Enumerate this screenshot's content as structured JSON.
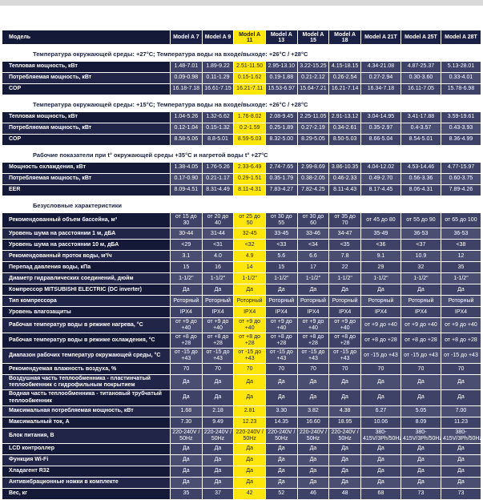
{
  "colors": {
    "highlight_yellow": "#ffe60a",
    "header_navy": "#141938",
    "row_navy_dark": "#3d4266",
    "row_navy_light": "#4a4f72",
    "top_strip_gray": "#d9d9d9"
  },
  "table": {
    "header": {
      "label": "Модель",
      "models": [
        "Model A 7",
        "Model A 9",
        "Model A 11",
        "Model A 13",
        "Model A 15",
        "Model A 18",
        "Model A 21T",
        "Model A 25T",
        "Model A 28T"
      ],
      "highlighted_model": "Model A 11",
      "highlight_index": 2
    },
    "sections": [
      {
        "title": "Температура окружающей среды: +27°С; Температура воды на входе/выходе: +26°С / +28°С",
        "rows": [
          {
            "label": "Тепловая мощность, кВт",
            "values": [
              "1.48-7.01",
              "1.89-9.22",
              "2.51-11.50",
              "2.95-13.10",
              "3.22-15.25",
              "4.15-18.15",
              "4.34-21.08",
              "4.87-25.37",
              "5.13-28.01"
            ]
          },
          {
            "label": "Потребляемая мощность, кВт",
            "values": [
              "0.09-0.98",
              "0.11-1.29",
              "0.15-1.62",
              "0.19-1.88",
              "0.21-2.12",
              "0.26-2.54",
              "0.27-2.94",
              "0.30-3.60",
              "0.33-4.01"
            ]
          },
          {
            "label": "COP",
            "values": [
              "16.18-7.18",
              "16.61-7.15",
              "16.21-7.11",
              "15.53-6.97",
              "15.64-7.21",
              "16.21-7.14",
              "16.34-7.18",
              "16.11-7.05",
              "15.78-6.98"
            ]
          }
        ]
      },
      {
        "title": "Температура окружающей среды: +15°С; Температура воды на входе/выходе: +26°С / +28°С",
        "rows": [
          {
            "label": "Тепловая мощность, кВт",
            "values": [
              "1.04-5.26",
              "1.32-6.62",
              "1.76-8.02",
              "2.08-9.45",
              "2.25-11.05",
              "2.91-13.12",
              "3.04-14.95",
              "3.41-17.88",
              "3.59-19.61"
            ]
          },
          {
            "label": "Потребляемая мощность, кВт",
            "values": [
              "0.12-1.04",
              "0.15-1.32",
              "0.2-1.59",
              "0.25-1.89",
              "0.27-2.19",
              "0.34-2.61",
              "0.35-2.97",
              "0.4-3.57",
              "0.43-3.93"
            ]
          },
          {
            "label": "COP",
            "values": [
              "8.58-5.06",
              "8.8-5.01",
              "8.59-5.03",
              "8.32-5.00",
              "8.29-5.05",
              "8.50-5.03",
              "8.66-5.04",
              "8.54-5.01",
              "8.36-4.99"
            ]
          }
        ]
      },
      {
        "title": "Рабочие показатели при t° окружающей среды +35°С и нагретой воды t° +27°С",
        "rows": [
          {
            "label": "Мощность охлаждения, кВт",
            "values": [
              "1.38-4.05",
              "1.76-5.26",
              "2.33-6.49",
              "2.74-7.65",
              "2.99-8.69",
              "3.86-10.35",
              "4.04-12.02",
              "4.53-14.46",
              "4.77-15.97"
            ]
          },
          {
            "label": "Потребляемая мощность, кВт",
            "values": [
              "0.17-0.90",
              "0.21-1.17",
              "0.29-1.51",
              "0.35-1.79",
              "0.38-2.05",
              "0.46-2.33",
              "0.49-2.70",
              "0.56-3.36",
              "0.60-3.75"
            ]
          },
          {
            "label": "EER",
            "values": [
              "8.09-4.51",
              "8.31-4.49",
              "8.11-4.31",
              "7.83-4.27",
              "7.82-4.25",
              "8.11-4.43",
              "8.17-4.45",
              "8.06-4.31",
              "7.89-4.26"
            ]
          }
        ]
      },
      {
        "title": "Безусловные характеристики",
        "rows": [
          {
            "label": "Рекомендованный объем бассейна, м³",
            "values": [
              "от 15 до 30",
              "от 20 до 40",
              "от 25 до 50",
              "от 30 до 55",
              "от 30 до 60",
              "от 35 до 70",
              "от 45 до 80",
              "от 55 до 90",
              "от 65 до 100"
            ]
          },
          {
            "label": "Уровень шума на расстоянии 1 м, дБА",
            "values": [
              "30-44",
              "31-44",
              "32-45",
              "33-45",
              "33-46",
              "34-47",
              "35-49",
              "36-53",
              "36-53"
            ]
          },
          {
            "label": "Уровень шума на расстоянии 10 м, дБА",
            "values": [
              "<29",
              "<31",
              "<32",
              "<33",
              "<34",
              "<35",
              "<36",
              "<37",
              "<38"
            ]
          },
          {
            "label": "Рекомендованный проток воды, м³/ч",
            "values": [
              "3.1",
              "4.0",
              "4.9",
              "5.6",
              "6.6",
              "7.8",
              "9.1",
              "10.9",
              "12"
            ]
          },
          {
            "label": "Перепад давления воды, кПа",
            "values": [
              "15",
              "16",
              "14",
              "15",
              "17",
              "22",
              "29",
              "32",
              "35"
            ]
          },
          {
            "label": "Диаметр гидравлических соединений, дюйм",
            "values": [
              "1-1/2\"",
              "1-1/2\"",
              "1-1/2\"",
              "1-1/2\"",
              "1-1/2\"",
              "1-1/2\"",
              "1-1/2\"",
              "1-1/2\"",
              "1-1/2\""
            ]
          },
          {
            "label": "Компрессор MITSUBISHI ELECTRIC (DC inverter)",
            "values": [
              "Да",
              "Да",
              "Да",
              "Да",
              "Да",
              "Да",
              "Да",
              "Да",
              "Да"
            ]
          },
          {
            "label": "Тип компрессора",
            "values": [
              "Роторный",
              "Роторный",
              "Роторный",
              "Роторный",
              "Роторный",
              "Роторный",
              "Роторный",
              "Роторный",
              "Роторный"
            ]
          },
          {
            "label": "Уровень влагозащиты",
            "values": [
              "IPX4",
              "IPX4",
              "IPX4",
              "IPX4",
              "IPX4",
              "IPX4",
              "IPX4",
              "IPX4",
              "IPX4"
            ]
          },
          {
            "label": "Рабочая температур воды в режиме нагрева, °С",
            "values": [
              "от +9 до +40",
              "от +9 до +40",
              "от +9 до +40",
              "от +9 до +40",
              "от +9 до +40",
              "от +9 до +40",
              "от +9 до +40",
              "от +9 до +40",
              "от +9 до +40"
            ]
          },
          {
            "label": "Рабочая температур воды в режиме охлаждения, °С",
            "values": [
              "от +8 до +28",
              "от +8 до +28",
              "от +8 до +28",
              "от +8 до +28",
              "от +8 до +28",
              "от +8 до +28",
              "от +8 до +28",
              "от +8 до +28",
              "от +8 до +28"
            ]
          },
          {
            "label": "Диапазон рабочих температур окружающей среды, °С",
            "values": [
              "от -15 до +43",
              "от -15 до +43",
              "от -15 до +43",
              "от -15 до +43",
              "от -15 до +43",
              "от -15 до +43",
              "от -15 до +43",
              "от -15 до +43",
              "от -15 до +43"
            ]
          },
          {
            "label": "Рекомендуемая влажность воздуха, %",
            "values": [
              "70",
              "70",
              "70",
              "70",
              "70",
              "70",
              "70",
              "70",
              "70"
            ]
          },
          {
            "label": "Воздушная часть теплообменника - пластинчатый теплообменник с гидрофильным покрытием",
            "values": [
              "Да",
              "Да",
              "Да",
              "Да",
              "Да",
              "Да",
              "Да",
              "Да",
              "Да"
            ]
          },
          {
            "label": "Водная часть теплообменника - титановый трубчатый теплообменник",
            "values": [
              "Да",
              "Да",
              "Да",
              "Да",
              "Да",
              "Да",
              "Да",
              "Да",
              "Да"
            ]
          },
          {
            "label": "Максимальная потребляемая мощность, кВт",
            "values": [
              "1.68",
              "2.18",
              "2.81",
              "3.30",
              "3.82",
              "4.38",
              "6.27",
              "5.05",
              "7.00"
            ]
          },
          {
            "label": "Максимальный ток, А",
            "values": [
              "7.30",
              "9.49",
              "12.23",
              "14.35",
              "16.60",
              "18.95",
              "10.06",
              "8.09",
              "11.23"
            ]
          },
          {
            "label": "Блок питания, В",
            "values": [
              "220-240V / 50Hz",
              "220-240V / 50Hz",
              "220-240V / 50Hz",
              "220-240V / 50Hz",
              "220-240V / 50Hz",
              "220-240V / 50Hz",
              "380-415V/3Ph/50Hz",
              "380-415V/3Ph/50Hz",
              "380-415V/3Ph/50Hz"
            ]
          },
          {
            "label": "LCD контроллер",
            "values": [
              "Да",
              "Да",
              "Да",
              "Да",
              "Да",
              "Да",
              "Да",
              "Да",
              "Да"
            ]
          },
          {
            "label": "Функция Wi-Fi",
            "values": [
              "Да",
              "Да",
              "Да",
              "Да",
              "Да",
              "Да",
              "Да",
              "Да",
              "Да"
            ]
          },
          {
            "label": "Хладагент R32",
            "values": [
              "Да",
              "Да",
              "Да",
              "Да",
              "Да",
              "Да",
              "Да",
              "Да",
              "Да"
            ]
          },
          {
            "label": "Антивибрационные ножки в комплекте",
            "values": [
              "Да",
              "Да",
              "Да",
              "Да",
              "Да",
              "Да",
              "Да",
              "Да",
              "Да"
            ]
          },
          {
            "label": "Вес, кг",
            "values": [
              "35",
              "37",
              "42",
              "52",
              "46",
              "48",
              "68",
              "73",
              "73"
            ]
          }
        ]
      }
    ]
  }
}
